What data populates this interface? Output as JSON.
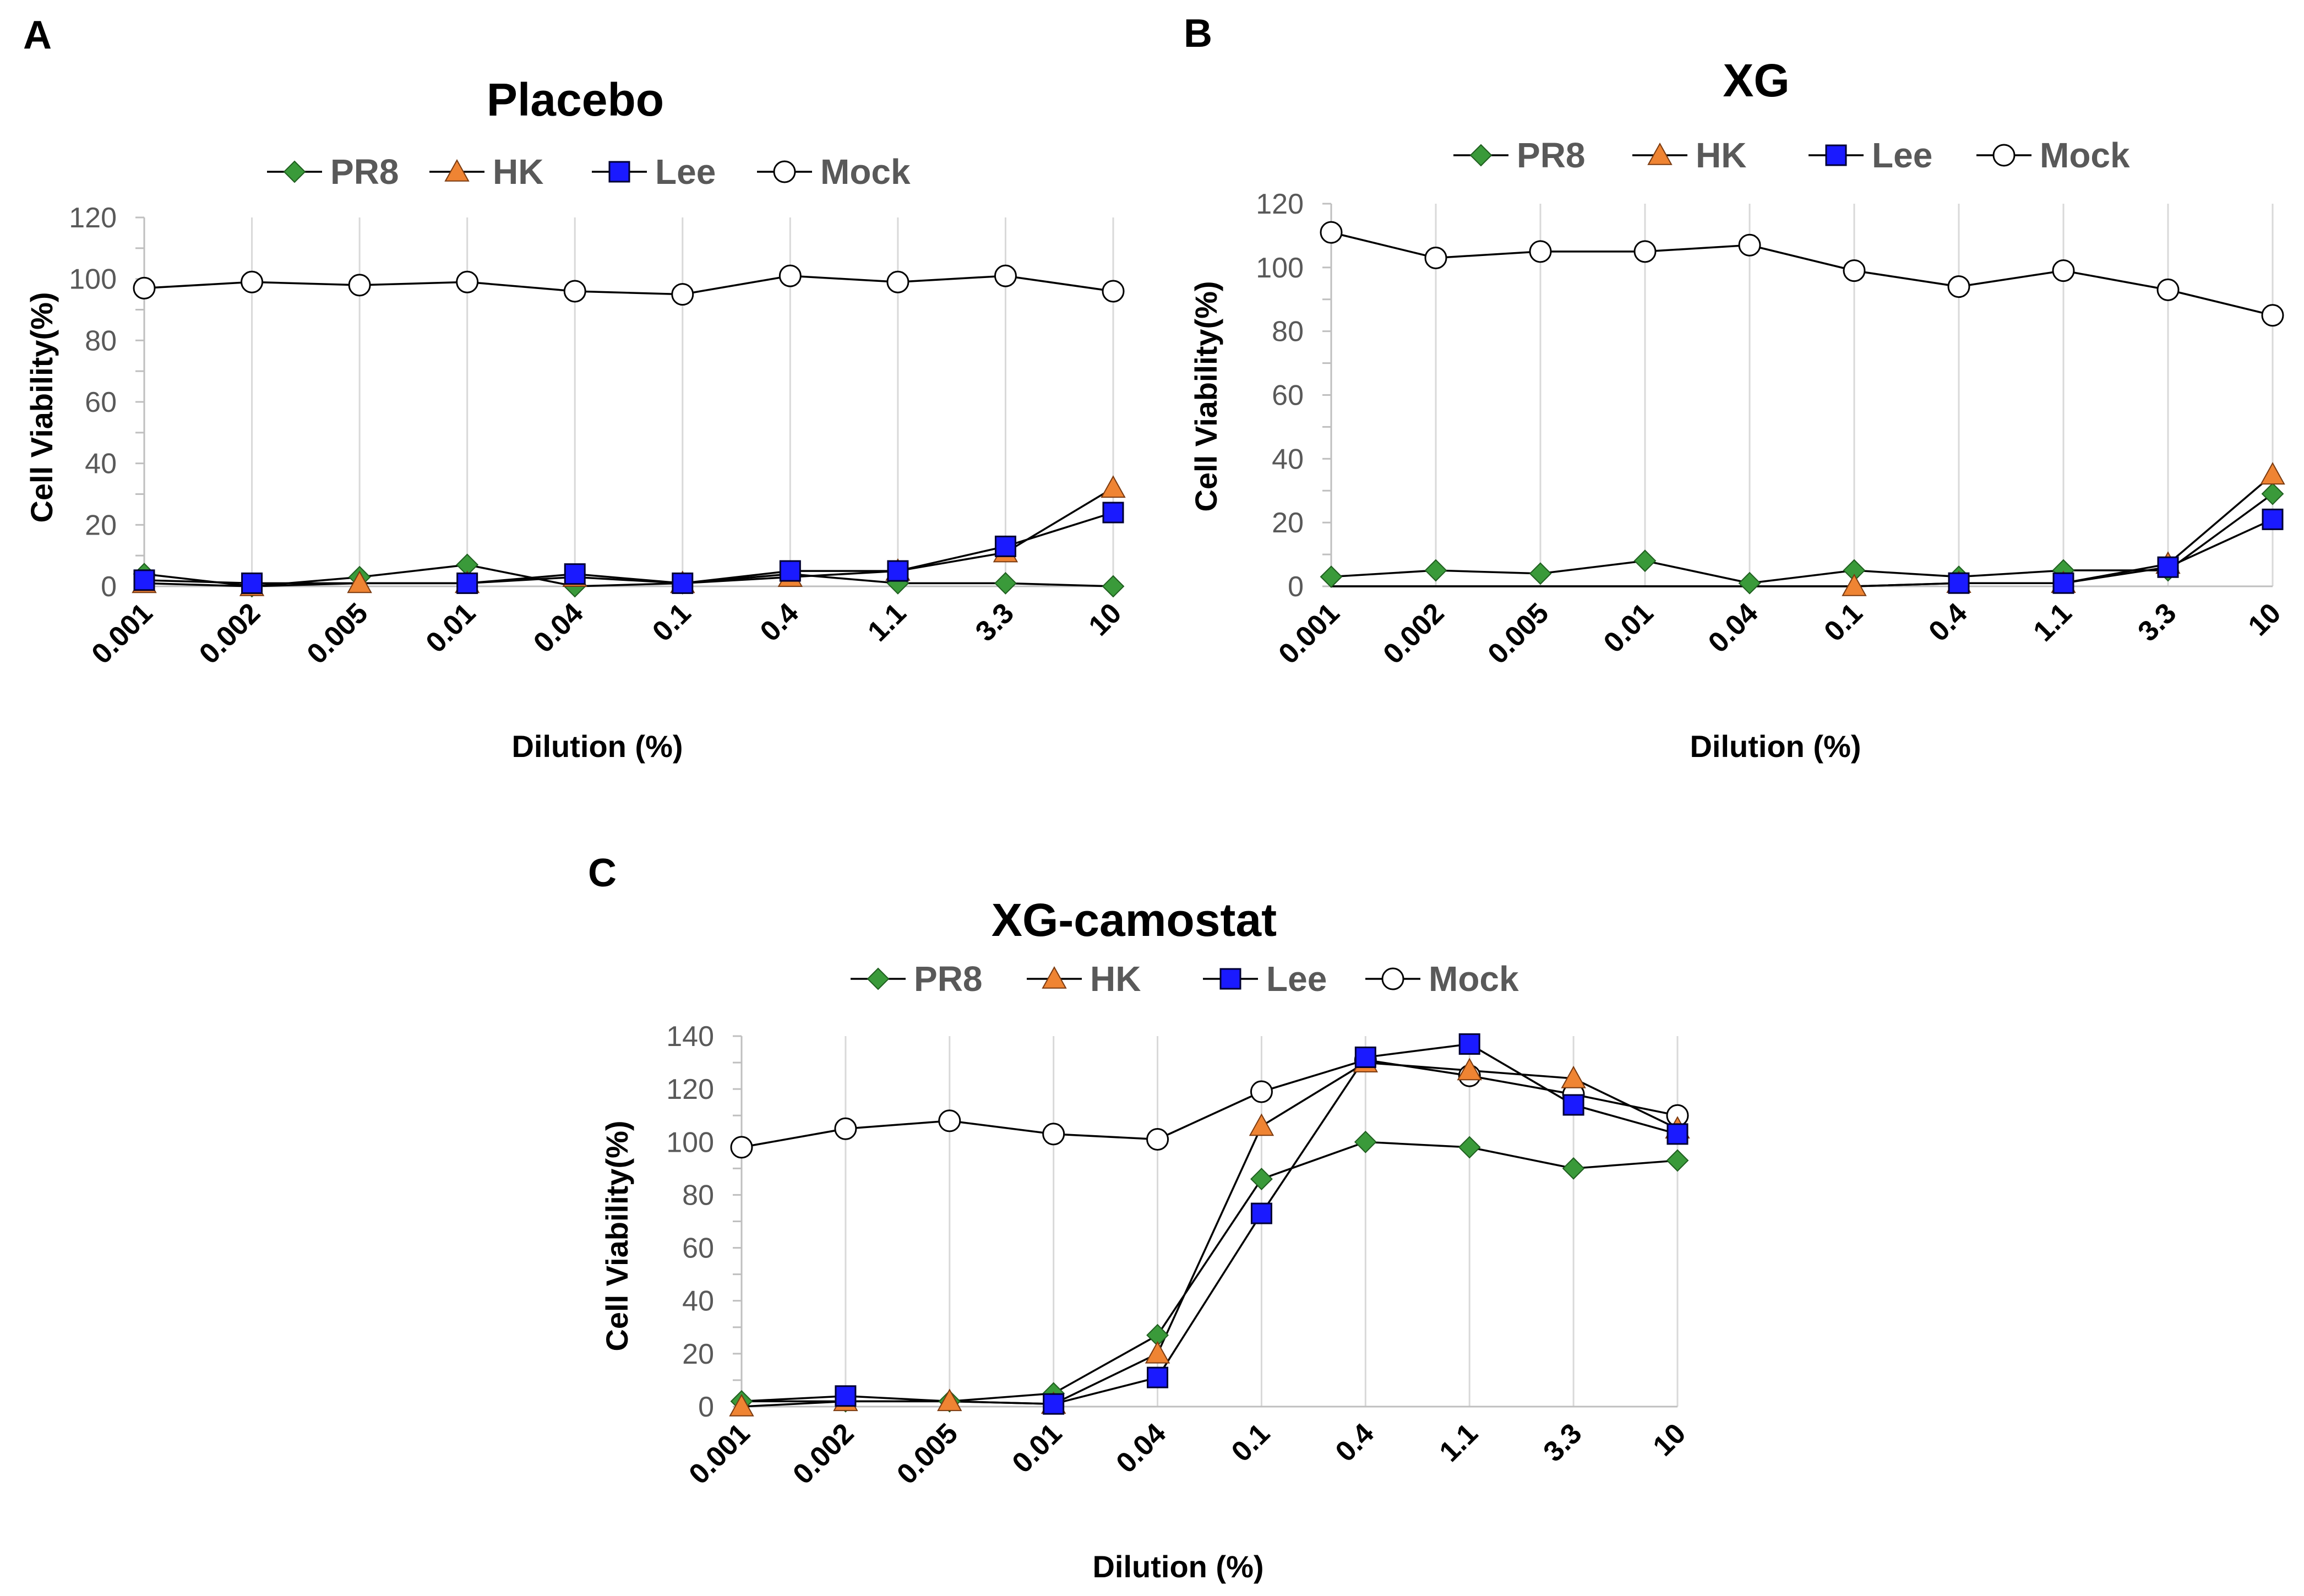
{
  "figure": {
    "x_ticks": [
      "0.001",
      "0.002",
      "0.005",
      "0.01",
      "0.04",
      "0.1",
      "0.4",
      "1.1",
      "3.3",
      "10"
    ]
  },
  "colors": {
    "PR8": "#3a9a3a",
    "HK": "#ef8433",
    "Lee": "#1a1aff",
    "Mock": "#ffffff",
    "line": "#000000",
    "grid": "#d9d9d9",
    "axis": "#bfbfbf"
  },
  "chart_data": [
    {
      "panel": "A",
      "type": "line",
      "title": "Placebo",
      "xlabel": "Dilution (%)",
      "ylabel": "Cell Viability(%)",
      "ylim": [
        0,
        120
      ],
      "y_ticks": [
        0,
        20,
        40,
        60,
        80,
        100,
        120
      ],
      "categories": [
        "0.001",
        "0.002",
        "0.005",
        "0.01",
        "0.04",
        "0.1",
        "0.4",
        "1.1",
        "3.3",
        "10"
      ],
      "legend": [
        "PR8",
        "HK",
        "Lee",
        "Mock"
      ],
      "series": [
        {
          "name": "PR8",
          "marker": "diamond",
          "values": [
            4,
            0,
            3,
            7,
            0,
            1,
            4,
            1,
            1,
            0
          ],
          "line_points": 10
        },
        {
          "name": "HK",
          "marker": "triangle",
          "values": [
            1,
            0,
            1,
            1,
            3,
            1,
            3,
            5,
            11,
            32
          ],
          "line_points": 10
        },
        {
          "name": "Lee",
          "marker": "square",
          "values": [
            2,
            1,
            1,
            1,
            4,
            1,
            5,
            5,
            13,
            24
          ],
          "line_points": 10,
          "markers_skip": [
            2
          ]
        },
        {
          "name": "Mock",
          "marker": "circle",
          "values": [
            97,
            99,
            98,
            99,
            96,
            95,
            101,
            99,
            101,
            96
          ],
          "line_points": 10
        }
      ]
    },
    {
      "panel": "B",
      "type": "line",
      "title": "XG",
      "xlabel": "Dilution (%)",
      "ylabel": "Cell Viability(%)",
      "ylim": [
        0,
        120
      ],
      "y_ticks": [
        0,
        20,
        40,
        60,
        80,
        100,
        120
      ],
      "categories": [
        "0.001",
        "0.002",
        "0.005",
        "0.01",
        "0.04",
        "0.1",
        "0.4",
        "1.1",
        "3.3",
        "10"
      ],
      "legend": [
        "PR8",
        "HK",
        "Lee",
        "Mock"
      ],
      "series": [
        {
          "name": "PR8",
          "marker": "diamond",
          "values": [
            3,
            5,
            4,
            8,
            1,
            5,
            3,
            5,
            5,
            29
          ],
          "line_points": 10
        },
        {
          "name": "HK",
          "marker": "triangle",
          "values": [
            0,
            0,
            0,
            0,
            0,
            0,
            1,
            1,
            7,
            35
          ],
          "line_points": 10,
          "markers_skip": [
            0,
            1,
            2,
            3,
            4
          ]
        },
        {
          "name": "Lee",
          "marker": "square",
          "values": [
            0,
            0,
            0,
            0,
            0,
            0,
            1,
            1,
            6,
            21
          ],
          "line_points": 10,
          "markers_skip": [
            0,
            1,
            2,
            3,
            4,
            5
          ]
        },
        {
          "name": "Mock",
          "marker": "circle",
          "values": [
            111,
            103,
            105,
            105,
            107,
            99,
            94,
            99,
            93,
            85
          ],
          "line_points": 10
        }
      ]
    },
    {
      "panel": "C",
      "type": "line",
      "title": "XG-camostat",
      "xlabel": "Dilution (%)",
      "ylabel": "Cell Viability(%)",
      "ylim": [
        0,
        140
      ],
      "y_ticks": [
        0,
        20,
        40,
        60,
        80,
        100,
        120,
        140
      ],
      "categories": [
        "0.001",
        "0.002",
        "0.005",
        "0.01",
        "0.04",
        "0.1",
        "0.4",
        "1.1",
        "3.3",
        "10"
      ],
      "legend": [
        "PR8",
        "HK",
        "Lee",
        "Mock"
      ],
      "series": [
        {
          "name": "PR8",
          "marker": "diamond",
          "values": [
            2,
            2,
            2,
            5,
            27,
            86,
            100,
            98,
            90,
            93
          ],
          "line_points": 10
        },
        {
          "name": "HK",
          "marker": "triangle",
          "values": [
            0,
            2,
            2,
            1,
            20,
            106,
            130,
            127,
            124,
            105
          ],
          "line_points": 10
        },
        {
          "name": "Lee",
          "marker": "square",
          "values": [
            2,
            4,
            2,
            1,
            11,
            73,
            132,
            137,
            114,
            103
          ],
          "line_points": 10,
          "markers_skip": [
            0,
            2
          ]
        },
        {
          "name": "Mock",
          "marker": "circle",
          "values": [
            98,
            105,
            108,
            103,
            101,
            119,
            131,
            125,
            118,
            110
          ],
          "line_points": 10
        }
      ]
    }
  ]
}
